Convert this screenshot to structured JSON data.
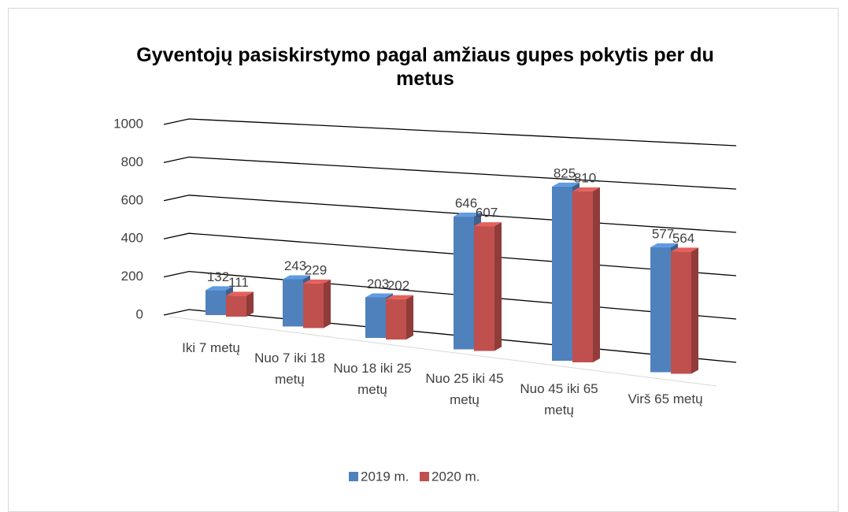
{
  "chart_data": {
    "type": "bar3d",
    "title": "Gyventojų pasiskirstymo pagal amžiaus gupes pokytis per du metus",
    "categories": [
      "Iki 7 metų",
      "Nuo 7 iki 18 metų",
      "Nuo 18 iki 25 metų",
      "Nuo 25 iki 45 metų",
      "Nuo 45 iki 65 metų",
      "Virš 65 metų"
    ],
    "series": [
      {
        "name": "2019 m.",
        "color": "#4f81bd",
        "values": [
          132,
          243,
          203,
          646,
          825,
          577
        ]
      },
      {
        "name": "2020 m.",
        "color": "#c0504d",
        "values": [
          111,
          229,
          202,
          607,
          810,
          564
        ]
      }
    ],
    "ylim": [
      0,
      1000
    ],
    "yticks": [
      0,
      200,
      400,
      600,
      800,
      1000
    ],
    "grid": true,
    "legend": "bottom"
  }
}
